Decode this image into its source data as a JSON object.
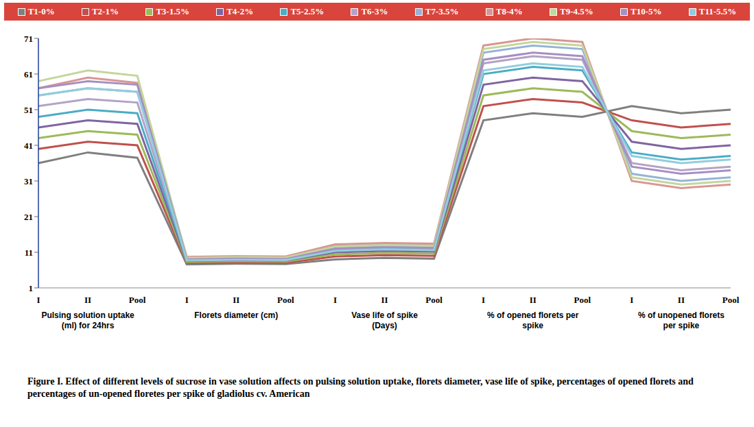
{
  "chart_data": {
    "type": "line",
    "title": "Figure I. Effect of different levels of sucrose in vase solution affects on pulsing solution uptake, florets diameter, vase life of spike, percentages of opened florets and percentages of un-opened floretes per spike of gladiolus cv. American",
    "categories": [
      "I",
      "II",
      "Pool",
      "I",
      "II",
      "Pool",
      "I",
      "II",
      "Pool",
      "I",
      "II",
      "Pool",
      "I",
      "II",
      "Pool"
    ],
    "groups": [
      "Pulsing solution uptake (ml) for 24hrs",
      "Florets diameter (cm)",
      "Vase life of spike (Days)",
      "% of opened florets per spike",
      "% of unopened florets per spike"
    ],
    "ylim": [
      1,
      71
    ],
    "yticks": [
      1,
      11,
      21,
      31,
      41,
      51,
      61,
      71
    ],
    "grid": false,
    "legend": "top",
    "marker": "none",
    "line_style": "solid",
    "series": [
      {
        "name": "T1-0%",
        "color": "#7f7f7f",
        "values": [
          36,
          39,
          37.5,
          7.6,
          7.8,
          7.7,
          9,
          9.4,
          9.2,
          48,
          50,
          49,
          52,
          50,
          51
        ]
      },
      {
        "name": "T2-1%",
        "color": "#c0504d",
        "values": [
          40,
          42,
          41,
          8.0,
          8.1,
          8.05,
          9.8,
          10.2,
          10,
          52,
          54,
          53,
          48,
          46,
          47
        ]
      },
      {
        "name": "T3-1.5%",
        "color": "#9bbb59",
        "values": [
          43,
          45,
          44,
          8.3,
          8.5,
          8.4,
          10.4,
          10.8,
          10.6,
          55,
          57,
          56,
          45,
          43,
          44
        ]
      },
      {
        "name": "T4-2%",
        "color": "#8064a2",
        "values": [
          46,
          48,
          47,
          8.6,
          8.8,
          8.7,
          11,
          11.4,
          11.2,
          58,
          60,
          59,
          42,
          40,
          41
        ]
      },
      {
        "name": "T5-2.5%",
        "color": "#4bacc6",
        "values": [
          49,
          51,
          50,
          8.9,
          9.1,
          9,
          11.6,
          12,
          11.8,
          61,
          63,
          62,
          39,
          37,
          38
        ]
      },
      {
        "name": "T6-3%",
        "color": "#b3a2c7",
        "values": [
          52,
          54,
          53,
          9.2,
          9.4,
          9.3,
          12.2,
          12.6,
          12.4,
          64,
          66,
          65,
          36,
          34,
          35
        ]
      },
      {
        "name": "T7-3.5%",
        "color": "#95b3d7",
        "values": [
          55,
          57,
          56,
          9.5,
          9.7,
          9.6,
          12.8,
          13.2,
          13,
          67,
          69,
          68,
          33,
          31,
          32
        ]
      },
      {
        "name": "T8-4%",
        "color": "#d99694",
        "values": [
          57,
          60,
          58.5,
          9.7,
          9.9,
          9.8,
          13.2,
          13.6,
          13.4,
          69,
          71,
          70,
          31,
          29,
          30
        ]
      },
      {
        "name": "T9-4.5%",
        "color": "#c3d69b",
        "values": [
          59,
          62,
          60.5,
          9.4,
          9.6,
          9.5,
          12.6,
          13,
          12.8,
          68,
          70,
          69,
          32,
          30,
          31
        ]
      },
      {
        "name": "T10-5%",
        "color": "#a490c2",
        "values": [
          57,
          59,
          58,
          9.0,
          9.2,
          9.1,
          12,
          12.4,
          12.2,
          65,
          67,
          66,
          35,
          33,
          34
        ]
      },
      {
        "name": "T11-5.5%",
        "color": "#93cddd",
        "values": [
          55,
          57,
          56,
          8.7,
          8.9,
          8.8,
          11.4,
          11.8,
          11.6,
          62,
          64,
          63,
          38,
          36,
          37
        ]
      }
    ]
  }
}
